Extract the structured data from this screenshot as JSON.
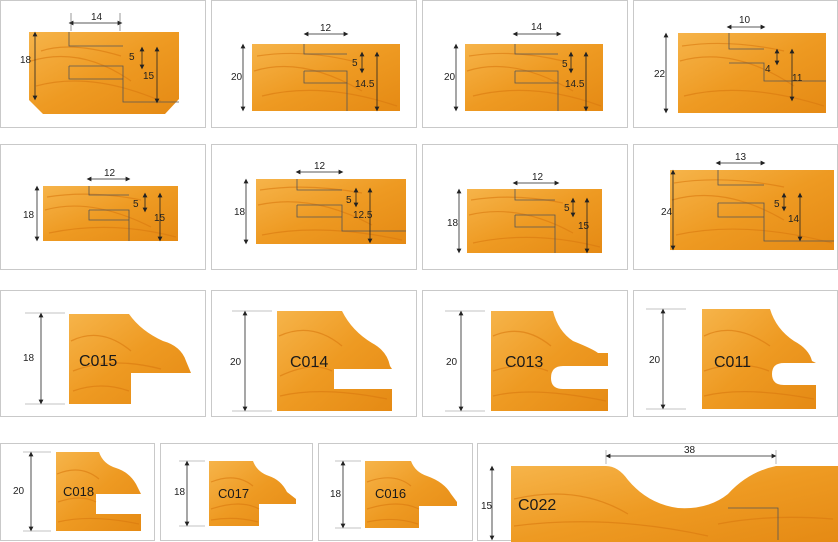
{
  "colors": {
    "wood": "#ef9a1c",
    "wood_light": "#f7b54a",
    "wood_grain": "#d9780f",
    "line": "#333333",
    "border": "#c9c9c9"
  },
  "row1": [
    {
      "width": "14",
      "height": "18",
      "depth_small": "5",
      "depth_large": "15"
    },
    {
      "width": "12",
      "height": "20",
      "depth_small": "5",
      "depth_large": "14.5"
    },
    {
      "width": "14",
      "height": "20",
      "depth_small": "5",
      "depth_large": "14.5"
    },
    {
      "width": "10",
      "height": "22",
      "depth_small": "4",
      "depth_large": "11"
    }
  ],
  "row2": [
    {
      "width": "12",
      "height": "18",
      "depth_small": "5",
      "depth_large": "15"
    },
    {
      "width": "12",
      "height": "18",
      "depth_small": "5",
      "depth_large": "12.5"
    },
    {
      "width": "12",
      "height": "18",
      "depth_small": "5",
      "depth_large": "15"
    },
    {
      "width": "13",
      "height": "24",
      "depth_small": "5",
      "depth_large": "14"
    }
  ],
  "row3": [
    {
      "code": "C015",
      "height": "18"
    },
    {
      "code": "C014",
      "height": "20"
    },
    {
      "code": "C013",
      "height": "20"
    },
    {
      "code": "C011",
      "height": "20"
    }
  ],
  "row4": [
    {
      "code": "C018",
      "height": "20"
    },
    {
      "code": "C017",
      "height": "18"
    },
    {
      "code": "C016",
      "height": "18"
    },
    {
      "code": "C022",
      "height": "15",
      "width": "38"
    }
  ]
}
